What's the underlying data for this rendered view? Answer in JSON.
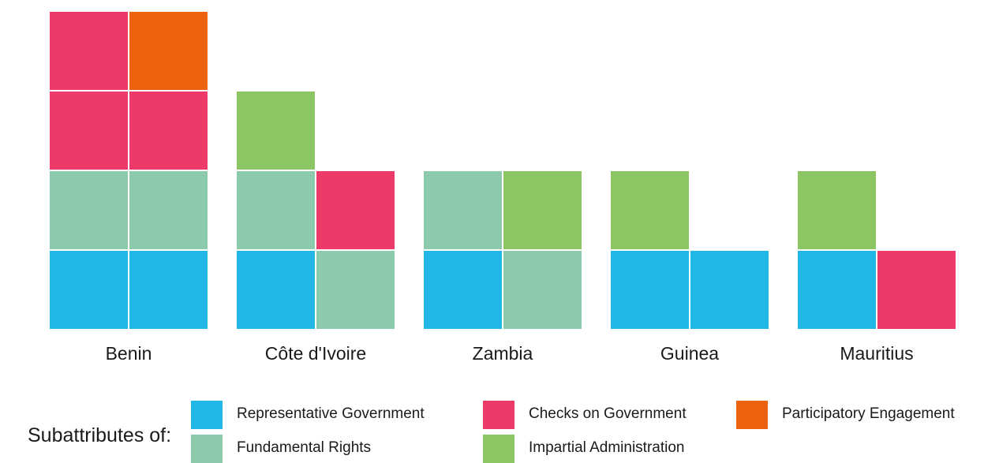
{
  "colors": {
    "representative_government": "#21B6E6",
    "fundamental_rights": "#8DC9AB",
    "checks_on_government": "#EE3A68",
    "impartial_administration": "#8BC663",
    "participatory_engagement": "#EC620D"
  },
  "chart_data": {
    "type": "waffle",
    "unit": "1 tile",
    "categories": [
      "Benin",
      "Côte d'Ivoire",
      "Zambia",
      "Guinea",
      "Mauritius"
    ],
    "columns_per_category": 2,
    "series": [
      {
        "name": "Representative Government",
        "key": "representative_government",
        "values": [
          2,
          1,
          1,
          2,
          1
        ]
      },
      {
        "name": "Fundamental Rights",
        "key": "fundamental_rights",
        "values": [
          2,
          2,
          2,
          0,
          0
        ]
      },
      {
        "name": "Checks on Government",
        "key": "checks_on_government",
        "values": [
          3,
          1,
          0,
          0,
          1
        ]
      },
      {
        "name": "Impartial Administration",
        "key": "impartial_administration",
        "values": [
          0,
          1,
          1,
          1,
          1
        ]
      },
      {
        "name": "Participatory Engagement",
        "key": "participatory_engagement",
        "values": [
          1,
          0,
          0,
          0,
          0
        ]
      }
    ],
    "fill_order": "row by row from bottom, left to right",
    "legend_position": "bottom"
  },
  "legend": {
    "title": "Subattributes of:",
    "items": [
      {
        "label": "Representative Government",
        "key": "representative_government"
      },
      {
        "label": "Checks on Government",
        "key": "checks_on_government"
      },
      {
        "label": "Participatory Engagement",
        "key": "participatory_engagement"
      },
      {
        "label": "Fundamental Rights",
        "key": "fundamental_rights"
      },
      {
        "label": "Impartial Administration",
        "key": "impartial_administration"
      }
    ]
  }
}
